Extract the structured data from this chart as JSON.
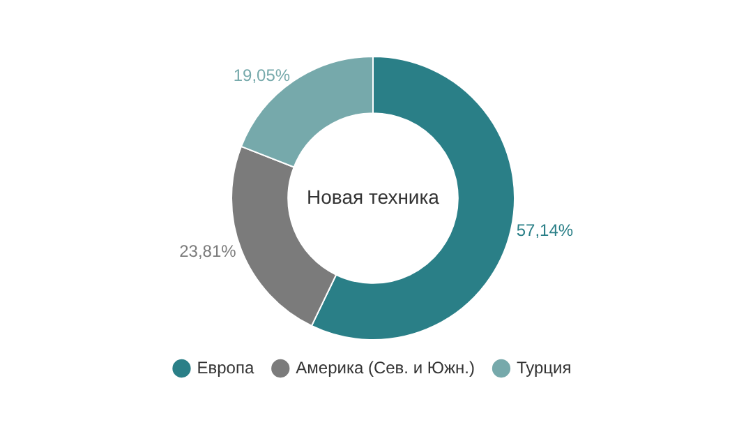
{
  "chart_data": {
    "type": "donut",
    "title": "Новая техника",
    "categories": [
      "Европа",
      "Америка (Сев. и Южн.)",
      "Турция"
    ],
    "values": [
      57.14,
      23.81,
      19.05
    ],
    "colors": [
      "#2a7f87",
      "#7b7b7b",
      "#76a9ab"
    ],
    "value_labels": [
      "57,14%",
      "23,81%",
      "19,05%"
    ],
    "legend": "bottom"
  }
}
